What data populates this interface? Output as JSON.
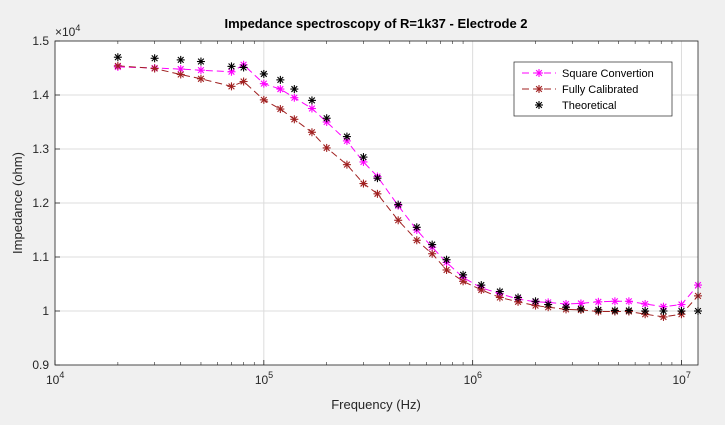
{
  "chart_data": {
    "type": "line",
    "title": "Impedance spectroscopy of R=1k37 - Electrode 2",
    "xlabel": "Frequency (Hz)",
    "ylabel": "Impedance (ohm)",
    "xscale": "log",
    "xlim": [
      10000,
      12000000
    ],
    "ylim": [
      9000,
      15000
    ],
    "y_exponent_label": "×10",
    "y_exponent_power": "4",
    "x_tick_labels": [
      {
        "value": 10000,
        "base": "10",
        "exp": "4"
      },
      {
        "value": 100000,
        "base": "10",
        "exp": "5"
      },
      {
        "value": 1000000,
        "base": "10",
        "exp": "6"
      },
      {
        "value": 10000000,
        "base": "10",
        "exp": "7"
      }
    ],
    "y_ticks": [
      9000,
      10000,
      11000,
      12000,
      13000,
      14000,
      15000
    ],
    "y_tick_labels": [
      "0.9",
      "1",
      "1.1",
      "1.2",
      "1.3",
      "1.4",
      "1.5"
    ],
    "grid": true,
    "legend_position": "top-right",
    "x": [
      20000,
      30000,
      40000,
      50000,
      70000,
      80000,
      100000,
      120000,
      140000,
      170000,
      200000,
      250000,
      300000,
      350000,
      440000,
      540000,
      640000,
      750000,
      900000,
      1100000,
      1350000,
      1650000,
      2000000,
      2300000,
      2800000,
      3300000,
      4000000,
      4800000,
      5600000,
      6700000,
      8200000,
      10000000,
      12000000
    ],
    "series": [
      {
        "name": "Square Convertion",
        "color": "#ff00ff",
        "line_style": "dashed",
        "marker": "asterisk",
        "values": [
          14520,
          14500,
          14480,
          14460,
          14430,
          14560,
          14210,
          14110,
          13950,
          13750,
          13500,
          13150,
          12760,
          12490,
          11950,
          11500,
          11180,
          10900,
          10620,
          10430,
          10320,
          10220,
          10170,
          10160,
          10130,
          10140,
          10170,
          10180,
          10180,
          10130,
          10080,
          10120,
          10480
        ]
      },
      {
        "name": "Fully Calibrated",
        "color": "#a02020",
        "line_style": "dashed",
        "marker": "asterisk",
        "values": [
          14540,
          14490,
          14380,
          14300,
          14160,
          14250,
          13910,
          13740,
          13550,
          13310,
          13020,
          12710,
          12360,
          12170,
          11680,
          11310,
          11060,
          10760,
          10550,
          10390,
          10250,
          10170,
          10100,
          10070,
          10030,
          10020,
          9990,
          9990,
          9990,
          9940,
          9890,
          9940,
          10280
        ]
      },
      {
        "name": "Theoretical",
        "color": "#000000",
        "line_style": "none",
        "marker": "asterisk",
        "values": [
          14700,
          14680,
          14650,
          14620,
          14530,
          14510,
          14390,
          14280,
          14110,
          13900,
          13570,
          13230,
          12850,
          12460,
          11970,
          11550,
          11230,
          10950,
          10670,
          10480,
          10360,
          10250,
          10180,
          10120,
          10070,
          10040,
          10020,
          10010,
          10010,
          10000,
          10000,
          10000,
          10000
        ]
      }
    ]
  }
}
